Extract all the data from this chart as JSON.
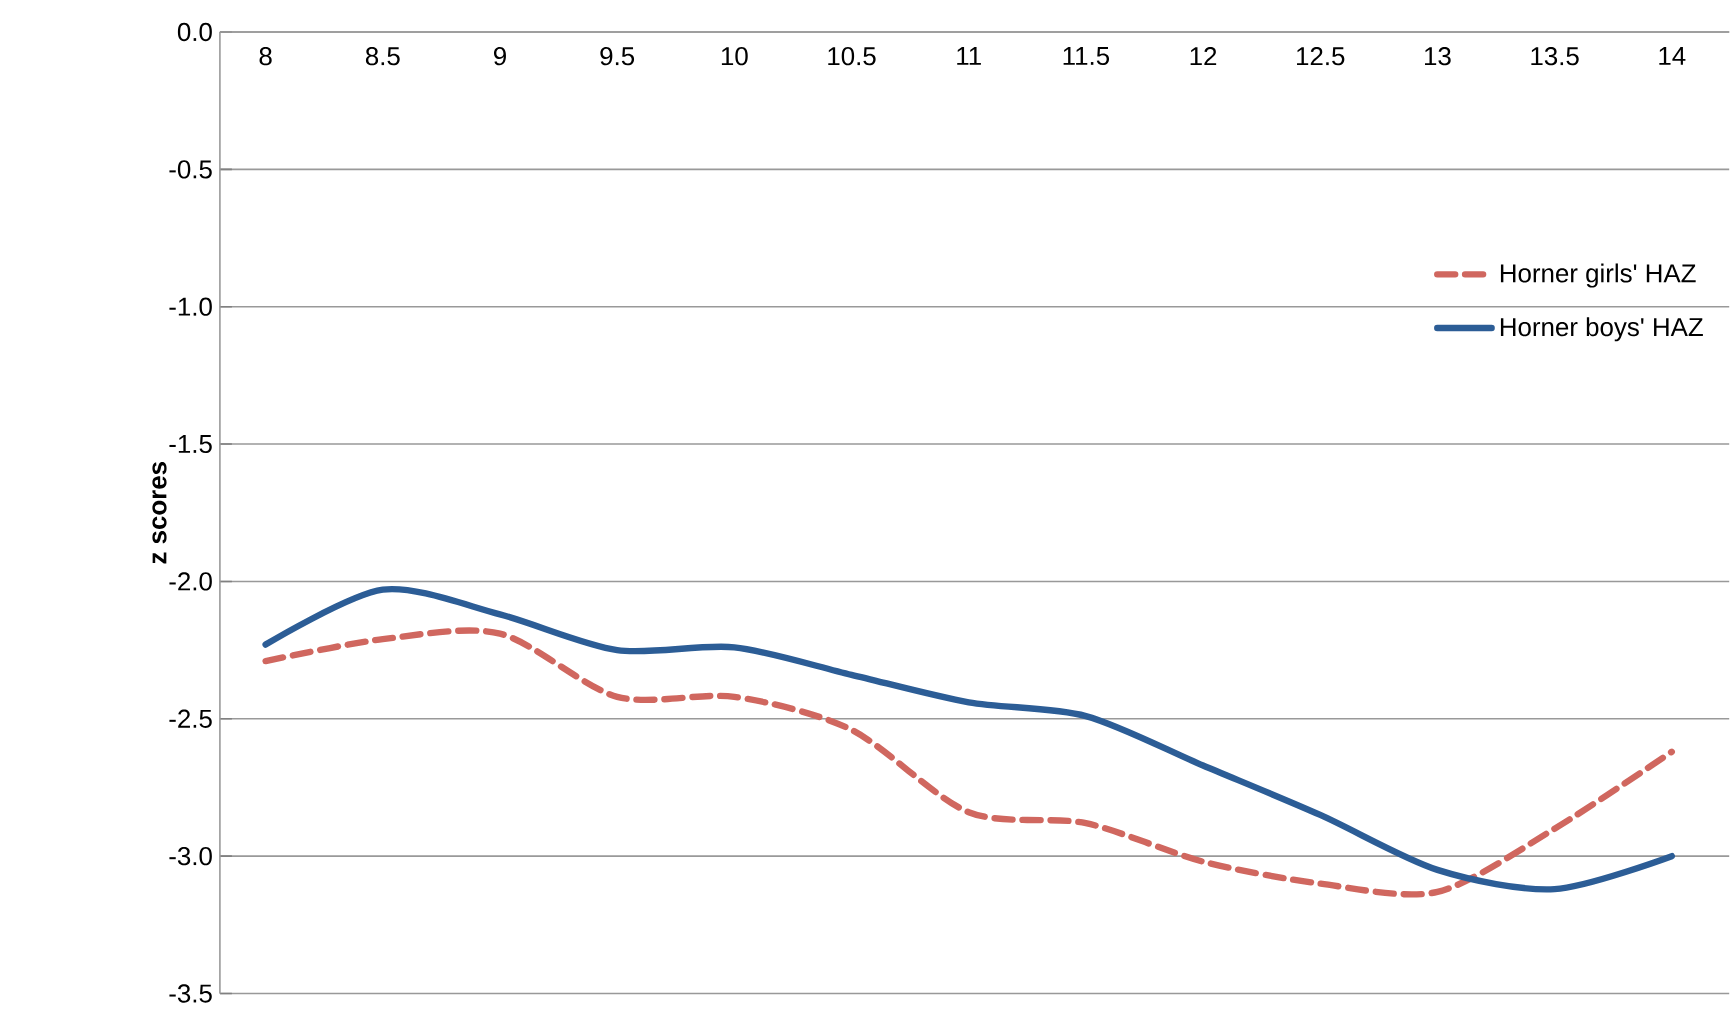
{
  "chart_data": {
    "type": "line",
    "ylabel": "**z scores**",
    "categories": [
      "8",
      "8.5",
      "9",
      "9.5",
      "10",
      "10.5",
      "11",
      "11.5",
      "12",
      "12.5",
      "13",
      "13.5",
      "14"
    ],
    "series": [
      {
        "name": "Horner girls' HAZ",
        "color": "#d0675f",
        "line_style": "dashed",
        "values": [
          -2.29,
          -2.21,
          -2.19,
          -2.42,
          -2.42,
          -2.54,
          -2.84,
          -2.88,
          -3.02,
          -3.1,
          -3.13,
          -2.9,
          -2.62
        ]
      },
      {
        "name": "Horner boys' HAZ",
        "color": "#2c5d96",
        "line_style": "solid",
        "values": [
          -2.23,
          -2.03,
          -2.12,
          -2.25,
          -2.24,
          -2.34,
          -2.44,
          -2.49,
          -2.67,
          -2.85,
          -3.05,
          -3.12,
          -3.0
        ]
      }
    ],
    "ylim": [
      -3.5,
      0.0
    ],
    "yticks": [
      {
        "value": 0.0,
        "label": "0.0"
      },
      {
        "value": -0.5,
        "label": "-0.5"
      },
      {
        "value": -1.0,
        "label": "-1.0"
      },
      {
        "value": -1.5,
        "label": "-1.5"
      },
      {
        "value": -2.0,
        "label": "-2.0"
      },
      {
        "value": -2.5,
        "label": "-2.5"
      },
      {
        "value": -3.0,
        "label": "-3.0"
      },
      {
        "value": -3.5,
        "label": "-3.5"
      }
    ],
    "grid": "y",
    "legend": "right",
    "marker": "none"
  }
}
